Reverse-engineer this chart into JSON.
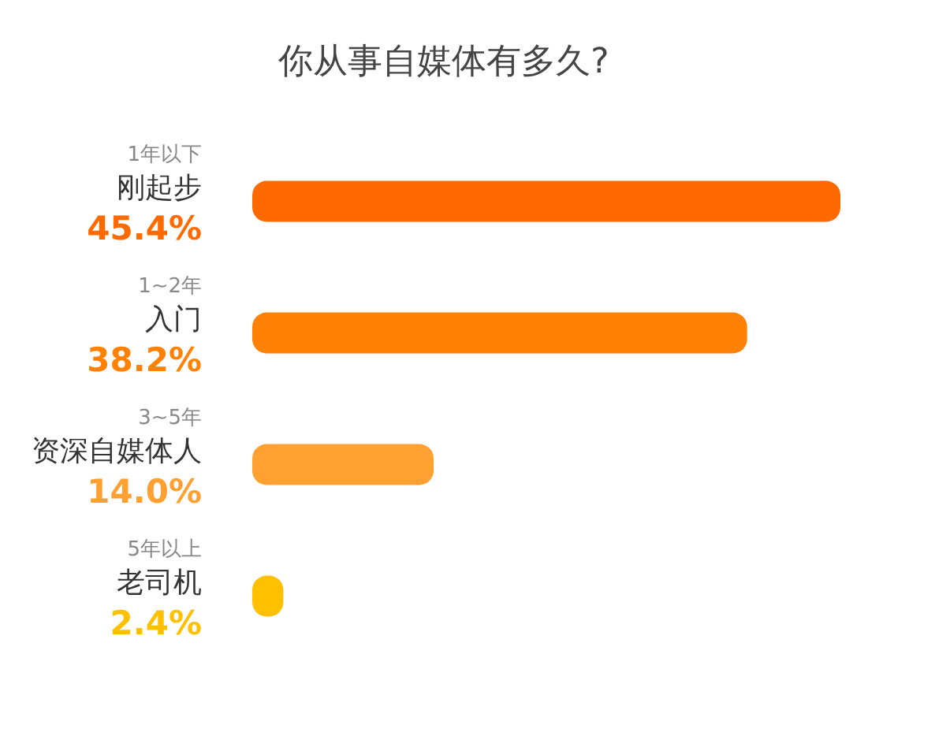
{
  "chart_data": {
    "type": "bar",
    "orientation": "horizontal",
    "title": "你从事自媒体有多久?",
    "categories": [
      "刚起步",
      "入门",
      "资深自媒体人",
      "老司机"
    ],
    "values": [
      45.4,
      38.2,
      14.0,
      2.4
    ],
    "colors": [
      "#ff6a00",
      "#ff8106",
      "#ffa033",
      "#ffc000"
    ],
    "value_labels": [
      "45.4%",
      "38.2%",
      "14.0%",
      "2.4%"
    ],
    "annotations": [
      "1年以下",
      "1~2年",
      "3~5年",
      "5年以上"
    ],
    "data_labels": true
  }
}
